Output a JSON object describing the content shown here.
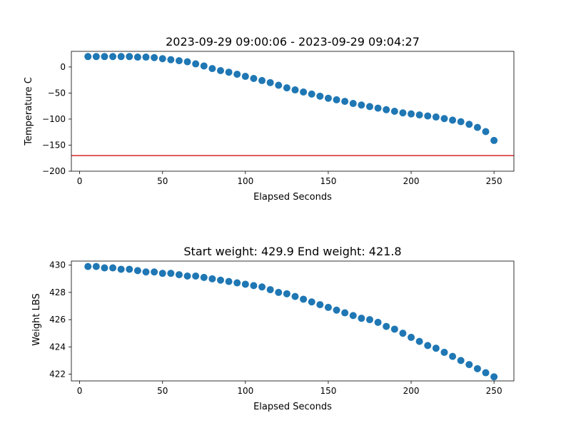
{
  "chart_data": [
    {
      "type": "scatter",
      "title": "2023-09-29 09:00:06 - 2023-09-29 09:04:27",
      "xlabel": "Elapsed Seconds",
      "ylabel": "Temperature C",
      "xlim": [
        -5,
        262
      ],
      "ylim": [
        -200,
        30
      ],
      "xticks": [
        0,
        50,
        100,
        150,
        200,
        250
      ],
      "yticks": [
        -200,
        -150,
        -100,
        -50,
        0
      ],
      "ytick_labels": [
        "−200",
        "−150",
        "−100",
        "−50",
        "0"
      ],
      "grid": false,
      "marker_color": "#1f77b4",
      "hline": {
        "y": -170,
        "color": "#d62728"
      },
      "series": [
        {
          "x": [
            5,
            10,
            15,
            20,
            25,
            30,
            35,
            40,
            45,
            50,
            55,
            60,
            65,
            70,
            75,
            80,
            85,
            90,
            95,
            100,
            105,
            110,
            115,
            120,
            125,
            130,
            135,
            140,
            145,
            150,
            155,
            160,
            165,
            170,
            175,
            180,
            185,
            190,
            195,
            200,
            205,
            210,
            215,
            220,
            225,
            230,
            235,
            240,
            245,
            250
          ],
          "values": [
            20,
            20,
            20,
            20,
            20,
            20,
            19,
            19,
            18,
            16,
            14,
            12,
            10,
            6,
            2,
            -3,
            -7,
            -10,
            -14,
            -18,
            -22,
            -26,
            -30,
            -35,
            -40,
            -44,
            -48,
            -52,
            -56,
            -60,
            -63,
            -66,
            -70,
            -73,
            -76,
            -79,
            -82,
            -85,
            -88,
            -90,
            -92,
            -94,
            -96,
            -99,
            -102,
            -105,
            -110,
            -116,
            -124,
            -141
          ]
        }
      ]
    },
    {
      "type": "scatter",
      "title": "Start weight: 429.9 End weight: 421.8",
      "xlabel": "Elapsed Seconds",
      "ylabel": "Weight LBS",
      "xlim": [
        -5,
        262
      ],
      "ylim": [
        421.5,
        430.3
      ],
      "xticks": [
        0,
        50,
        100,
        150,
        200,
        250
      ],
      "yticks": [
        422,
        424,
        426,
        428,
        430
      ],
      "ytick_labels": [
        "422",
        "424",
        "426",
        "428",
        "430"
      ],
      "grid": false,
      "marker_color": "#1f77b4",
      "series": [
        {
          "x": [
            5,
            10,
            15,
            20,
            25,
            30,
            35,
            40,
            45,
            50,
            55,
            60,
            65,
            70,
            75,
            80,
            85,
            90,
            95,
            100,
            105,
            110,
            115,
            120,
            125,
            130,
            135,
            140,
            145,
            150,
            155,
            160,
            165,
            170,
            175,
            180,
            185,
            190,
            195,
            200,
            205,
            210,
            215,
            220,
            225,
            230,
            235,
            240,
            245,
            250
          ],
          "values": [
            429.9,
            429.9,
            429.8,
            429.8,
            429.7,
            429.7,
            429.6,
            429.5,
            429.5,
            429.4,
            429.4,
            429.3,
            429.2,
            429.2,
            429.1,
            429.0,
            428.9,
            428.8,
            428.7,
            428.6,
            428.5,
            428.4,
            428.2,
            428.0,
            427.9,
            427.7,
            427.5,
            427.3,
            427.1,
            426.9,
            426.7,
            426.5,
            426.3,
            426.1,
            426.0,
            425.8,
            425.5,
            425.3,
            425.0,
            424.7,
            424.4,
            424.1,
            423.9,
            423.6,
            423.3,
            423.0,
            422.7,
            422.4,
            422.1,
            421.8
          ]
        }
      ]
    }
  ]
}
